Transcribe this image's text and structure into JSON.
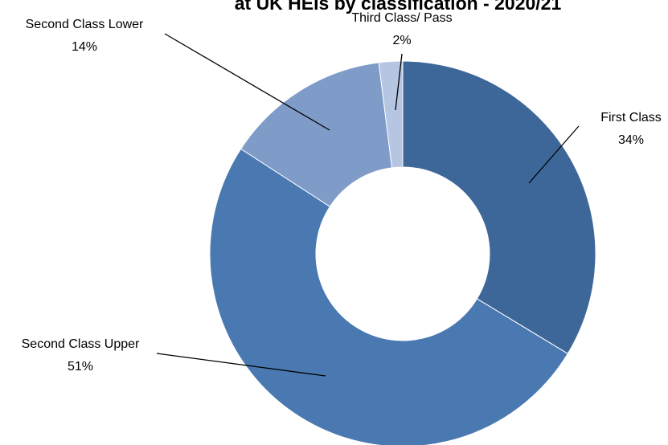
{
  "chart_data": {
    "type": "donut",
    "title": "at UK HEIs by classification - 2020/21",
    "categories": [
      "First Class",
      "Second Class Upper",
      "Second Class Lower",
      "Third Class/ Pass"
    ],
    "values": [
      34,
      51,
      14,
      2
    ],
    "value_labels": [
      "34%",
      "51%",
      "14%",
      "2%"
    ],
    "colors": [
      "#3e6799",
      "#4a79b1",
      "#7f9cc9",
      "#b5c5e2"
    ]
  }
}
